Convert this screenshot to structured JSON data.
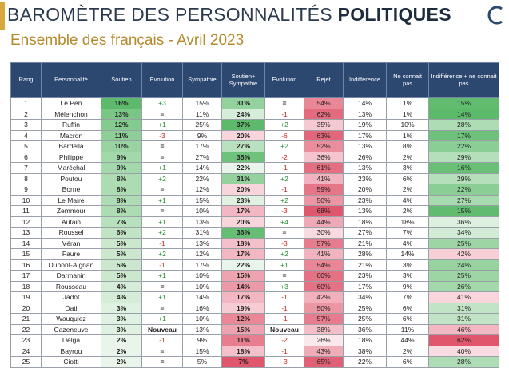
{
  "header": {
    "title_prefix": "BAROMÈTRE DES PERSONNALITÉS ",
    "title_bold": "POLITIQUES",
    "subtitle": "Ensemble des français - Avril 2023"
  },
  "colors": {
    "header_bg": "#2c4770",
    "title": "#2d3b4f",
    "subtitle": "#b48a2c",
    "accent_bar": "#d8a93a",
    "positive_text": "#1f8a2e",
    "negative_text": "#cc2222",
    "green_shade_range": [
      "#e9f5ea",
      "#5cba6a"
    ],
    "red_shade_range": [
      "#fbe8ec",
      "#e0566c"
    ]
  },
  "table": {
    "columns": [
      "Rang",
      "Personnalité",
      "Soutien",
      "Evolution",
      "Sympathie",
      "Soutien+ Sympathie",
      "Evolution",
      "Rejet",
      "Indifférence",
      "Ne connait pas",
      "Indifférence + ne connait pas"
    ],
    "rows": [
      [
        "1",
        "Le Pen",
        "16%",
        "+3",
        "15%",
        "31%",
        "=",
        "54%",
        "14%",
        "1%",
        "15%"
      ],
      [
        "2",
        "Mélenchon",
        "13%",
        "=",
        "11%",
        "24%",
        "-1",
        "62%",
        "13%",
        "1%",
        "14%"
      ],
      [
        "3",
        "Ruffin",
        "12%",
        "+1",
        "25%",
        "37%",
        "+2",
        "35%",
        "19%",
        "10%",
        "28%"
      ],
      [
        "4",
        "Macron",
        "11%",
        "-3",
        "9%",
        "20%",
        "-6",
        "63%",
        "17%",
        "1%",
        "17%"
      ],
      [
        "5",
        "Bardella",
        "10%",
        "=",
        "17%",
        "27%",
        "+2",
        "52%",
        "13%",
        "8%",
        "22%"
      ],
      [
        "6",
        "Philippe",
        "9%",
        "=",
        "27%",
        "35%",
        "-2",
        "36%",
        "26%",
        "2%",
        "29%"
      ],
      [
        "7",
        "Maréchal",
        "9%",
        "+1",
        "14%",
        "22%",
        "-1",
        "61%",
        "13%",
        "3%",
        "16%"
      ],
      [
        "8",
        "Poutou",
        "8%",
        "+2",
        "22%",
        "31%",
        "+2",
        "41%",
        "23%",
        "6%",
        "29%"
      ],
      [
        "9",
        "Borne",
        "8%",
        "=",
        "12%",
        "20%",
        "-1",
        "59%",
        "20%",
        "2%",
        "22%"
      ],
      [
        "10",
        "Le Maire",
        "8%",
        "+1",
        "15%",
        "23%",
        "+2",
        "50%",
        "23%",
        "4%",
        "27%"
      ],
      [
        "11",
        "Zemmour",
        "8%",
        "=",
        "10%",
        "17%",
        "-3",
        "68%",
        "13%",
        "2%",
        "15%"
      ],
      [
        "12",
        "Autain",
        "7%",
        "+1",
        "13%",
        "20%",
        "+4",
        "44%",
        "18%",
        "18%",
        "36%"
      ],
      [
        "13",
        "Roussel",
        "6%",
        "+2",
        "31%",
        "36%",
        "=",
        "30%",
        "27%",
        "7%",
        "34%"
      ],
      [
        "14",
        "Véran",
        "5%",
        "-1",
        "13%",
        "18%",
        "-3",
        "57%",
        "21%",
        "4%",
        "25%"
      ],
      [
        "15",
        "Faure",
        "5%",
        "+2",
        "12%",
        "17%",
        "+2",
        "41%",
        "28%",
        "14%",
        "42%"
      ],
      [
        "16",
        "Dupont-Aignan",
        "5%",
        "-1",
        "17%",
        "22%",
        "+1",
        "54%",
        "21%",
        "3%",
        "24%"
      ],
      [
        "17",
        "Darmanin",
        "5%",
        "+1",
        "10%",
        "15%",
        "=",
        "60%",
        "23%",
        "3%",
        "25%"
      ],
      [
        "18",
        "Rousseau",
        "4%",
        "=",
        "10%",
        "14%",
        "+3",
        "60%",
        "17%",
        "9%",
        "26%"
      ],
      [
        "19",
        "Jadot",
        "4%",
        "+1",
        "14%",
        "17%",
        "-1",
        "42%",
        "34%",
        "7%",
        "41%"
      ],
      [
        "20",
        "Dati",
        "3%",
        "=",
        "16%",
        "19%",
        "-1",
        "50%",
        "25%",
        "6%",
        "31%"
      ],
      [
        "21",
        "Wauquiez",
        "3%",
        "+1",
        "10%",
        "12%",
        "-1",
        "57%",
        "25%",
        "6%",
        "31%"
      ],
      [
        "22",
        "Cazeneuve",
        "3%",
        "Nouveau",
        "13%",
        "15%",
        "Nouveau",
        "38%",
        "36%",
        "11%",
        "46%"
      ],
      [
        "23",
        "Delga",
        "2%",
        "-1",
        "9%",
        "11%",
        "-2",
        "26%",
        "18%",
        "44%",
        "62%"
      ],
      [
        "24",
        "Bayrou",
        "2%",
        "=",
        "15%",
        "18%",
        "-1",
        "43%",
        "38%",
        "2%",
        "40%"
      ],
      [
        "25",
        "Ciotti",
        "2%",
        "=",
        "5%",
        "7%",
        "-3",
        "65%",
        "22%",
        "6%",
        "28%"
      ]
    ]
  }
}
